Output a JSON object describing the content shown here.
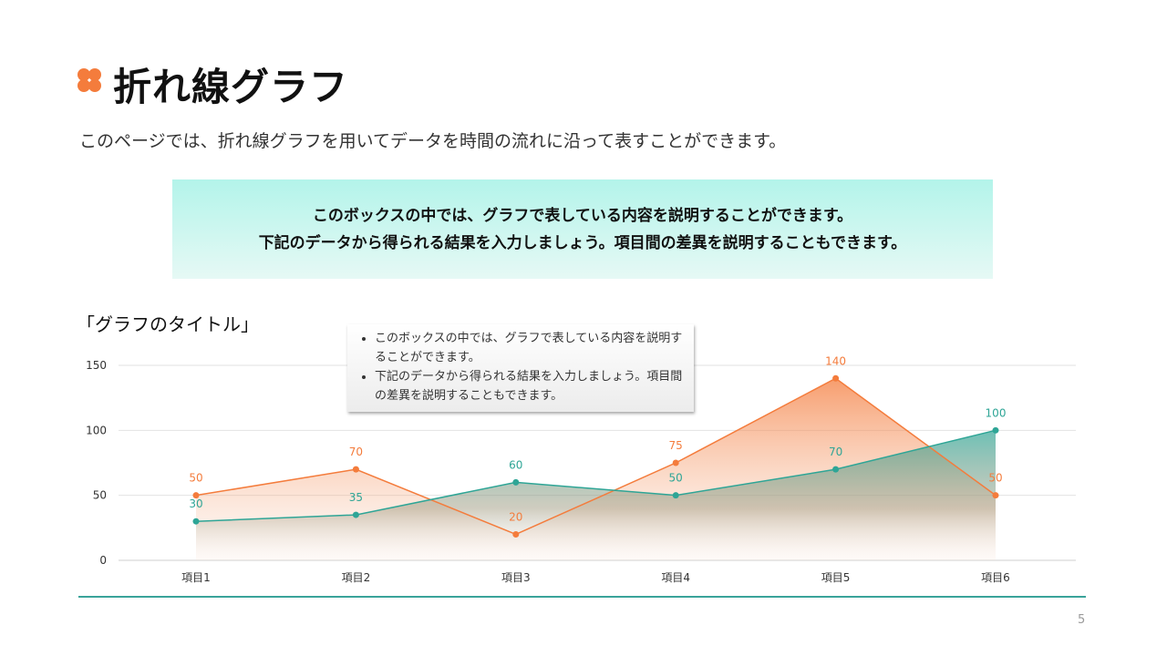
{
  "header": {
    "title": "折れ線グラフ",
    "subtitle": "このページでは、折れ線グラフを用いてデータを時間の流れに沿って表すことができます。",
    "logo_icon": "orange-clover-icon",
    "accent": "#f47c3c"
  },
  "infobox": {
    "line1": "このボックスの中では、グラフで表している内容を説明することができます。",
    "line2": "下記のデータから得られる結果を入力しましょう。項目間の差異を説明することもできます。"
  },
  "callout": {
    "items": [
      "このボックスの中では、グラフで表している内容を説明することができます。",
      "下記のデータから得られる結果を入力しましょう。項目間の差異を説明することもできます。"
    ]
  },
  "chart_data": {
    "type": "line",
    "title": "「グラフのタイトル」",
    "categories": [
      "項目1",
      "項目2",
      "項目3",
      "項目4",
      "項目5",
      "項目6"
    ],
    "series": [
      {
        "values": [
          50,
          70,
          20,
          75,
          140,
          50
        ],
        "color": "#f47c3c"
      },
      {
        "values": [
          30,
          35,
          60,
          50,
          70,
          100
        ],
        "color": "#2ea596"
      }
    ],
    "ylim": [
      0,
      150
    ],
    "yticks": [
      0,
      50,
      100,
      150
    ],
    "grid": true,
    "area_fill": true
  },
  "footer": {
    "page_number": "5"
  }
}
